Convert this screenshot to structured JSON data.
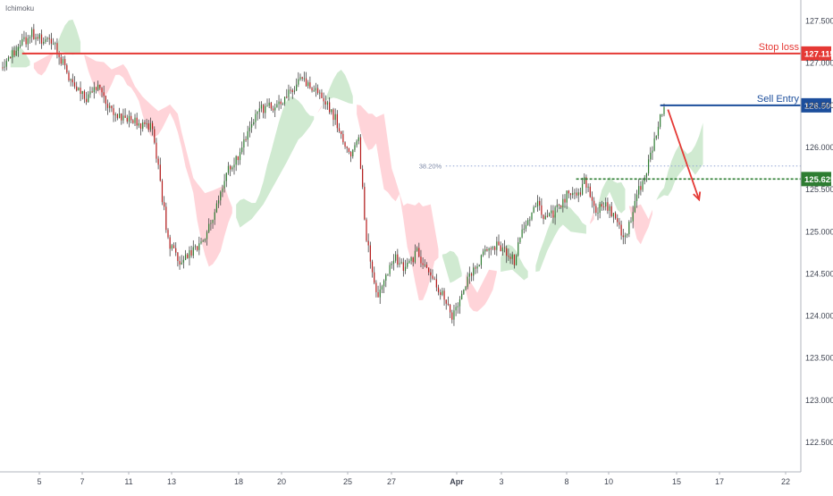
{
  "indicator_label": "Ichimoku",
  "colors": {
    "background": "#ffffff",
    "bull_candle": "#2e7d32",
    "bear_candle": "#b71c1c",
    "wick": "#444444",
    "cloud_bull": "#c8e6c9",
    "cloud_bear": "#ffcdd2",
    "stop_loss": "#e53935",
    "sell_entry": "#1c4e9c",
    "take_profit": "#2e7d32",
    "fib": "#90a4d4",
    "arrow": "#e53935",
    "axis_text": "#3f4451",
    "axis_line": "#b2b5be"
  },
  "chart_data": {
    "type": "candlestick",
    "title": "",
    "xlabel": "",
    "ylabel": "",
    "ylim": [
      122.15,
      127.75
    ],
    "grid": false,
    "y_ticks": [
      "122.500",
      "123.000",
      "123.500",
      "124.000",
      "124.500",
      "125.000",
      "125.500",
      "126.000",
      "126.500",
      "127.000",
      "127.500"
    ],
    "x_ticks": [
      "5",
      "7",
      "11",
      "13",
      "18",
      "20",
      "25",
      "27",
      "Apr",
      "3",
      "8",
      "10",
      "15",
      "17",
      "22"
    ],
    "price_path": [
      [
        0,
        126.95
      ],
      [
        4,
        127.35
      ],
      [
        7,
        127.2
      ],
      [
        9,
        126.8
      ],
      [
        11,
        126.55
      ],
      [
        12.5,
        126.75
      ],
      [
        14,
        126.45
      ],
      [
        16,
        126.35
      ],
      [
        18,
        126.28
      ],
      [
        19.5,
        126.25
      ],
      [
        21.5,
        124.9
      ],
      [
        23,
        124.6
      ],
      [
        24.5,
        124.75
      ],
      [
        26,
        124.9
      ],
      [
        27.5,
        125.2
      ],
      [
        29,
        125.7
      ],
      [
        30.5,
        125.9
      ],
      [
        32,
        126.25
      ],
      [
        33.5,
        126.45
      ],
      [
        35.5,
        126.5
      ],
      [
        37,
        126.65
      ],
      [
        38.5,
        126.8
      ],
      [
        40,
        126.7
      ],
      [
        41.5,
        126.55
      ],
      [
        43,
        126.35
      ],
      [
        44,
        126.05
      ],
      [
        45,
        125.95
      ],
      [
        46,
        126.1
      ],
      [
        47,
        124.9
      ],
      [
        48.5,
        124.2
      ],
      [
        49.5,
        124.45
      ],
      [
        50.5,
        124.7
      ],
      [
        52,
        124.55
      ],
      [
        53.5,
        124.75
      ],
      [
        55,
        124.5
      ],
      [
        56.5,
        124.3
      ],
      [
        58,
        124.0
      ],
      [
        59.5,
        124.35
      ],
      [
        61,
        124.55
      ],
      [
        62.5,
        124.8
      ],
      [
        64,
        124.85
      ],
      [
        66,
        124.65
      ],
      [
        67,
        125.0
      ],
      [
        68,
        125.2
      ],
      [
        69,
        125.35
      ],
      [
        70,
        125.15
      ],
      [
        72,
        125.3
      ],
      [
        73,
        125.5
      ],
      [
        74,
        125.4
      ],
      [
        75,
        125.6
      ],
      [
        76.5,
        125.25
      ],
      [
        77.5,
        125.35
      ],
      [
        79,
        125.15
      ],
      [
        80,
        124.9
      ],
      [
        81,
        125.15
      ],
      [
        82,
        125.5
      ],
      [
        83,
        125.7
      ],
      [
        84,
        126.1
      ],
      [
        85,
        126.45
      ]
    ],
    "price_line_days": [
      0,
      85
    ],
    "price_lines": [
      {
        "name": "Stop loss",
        "value": 127.115,
        "label": "127.115",
        "style": "solid",
        "x_start": 2.5
      },
      {
        "name": "Sell Entry",
        "value": 126.5,
        "label": "126.500",
        "style": "solid",
        "x_start": 84.5
      },
      {
        "name": "",
        "value": 125.625,
        "label": "125.625",
        "style": "dashed",
        "x_start": 73.7
      }
    ],
    "fib_levels": [
      {
        "label": "38.20%",
        "value": 125.78,
        "x_start": 53.5
      }
    ],
    "annotations": [
      {
        "text": "Stop loss",
        "anchor": "Stop loss line"
      },
      {
        "text": "Sell Entry",
        "anchor": "Sell Entry line"
      }
    ],
    "forecast_arrow": {
      "from": [
        85.5,
        126.45
      ],
      "to": [
        89.5,
        125.38
      ]
    }
  }
}
